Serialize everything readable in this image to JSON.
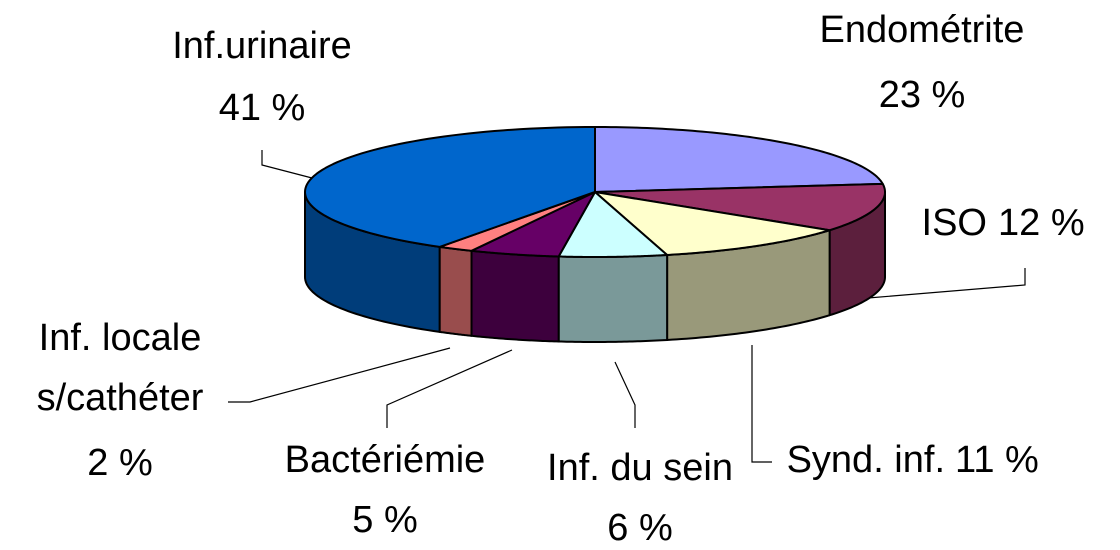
{
  "chart_data": {
    "type": "pie3d",
    "categories": [
      "Endométrite",
      "ISO",
      "Synd. inf.",
      "Inf. du sein",
      "Bactériémie",
      "Inf. locale s/cathéter",
      "Inf.urinaire"
    ],
    "values": [
      23,
      12,
      11,
      6,
      5,
      2,
      41
    ],
    "value_labels": [
      "23 %",
      "12 %",
      "11 %",
      "6 %",
      "5 %",
      "2 %",
      "41 %"
    ],
    "colors": [
      "#9999ff",
      "#993366",
      "#ffffcc",
      "#ccffff",
      "#660066",
      "#ff8080",
      "#0066cc"
    ]
  }
}
